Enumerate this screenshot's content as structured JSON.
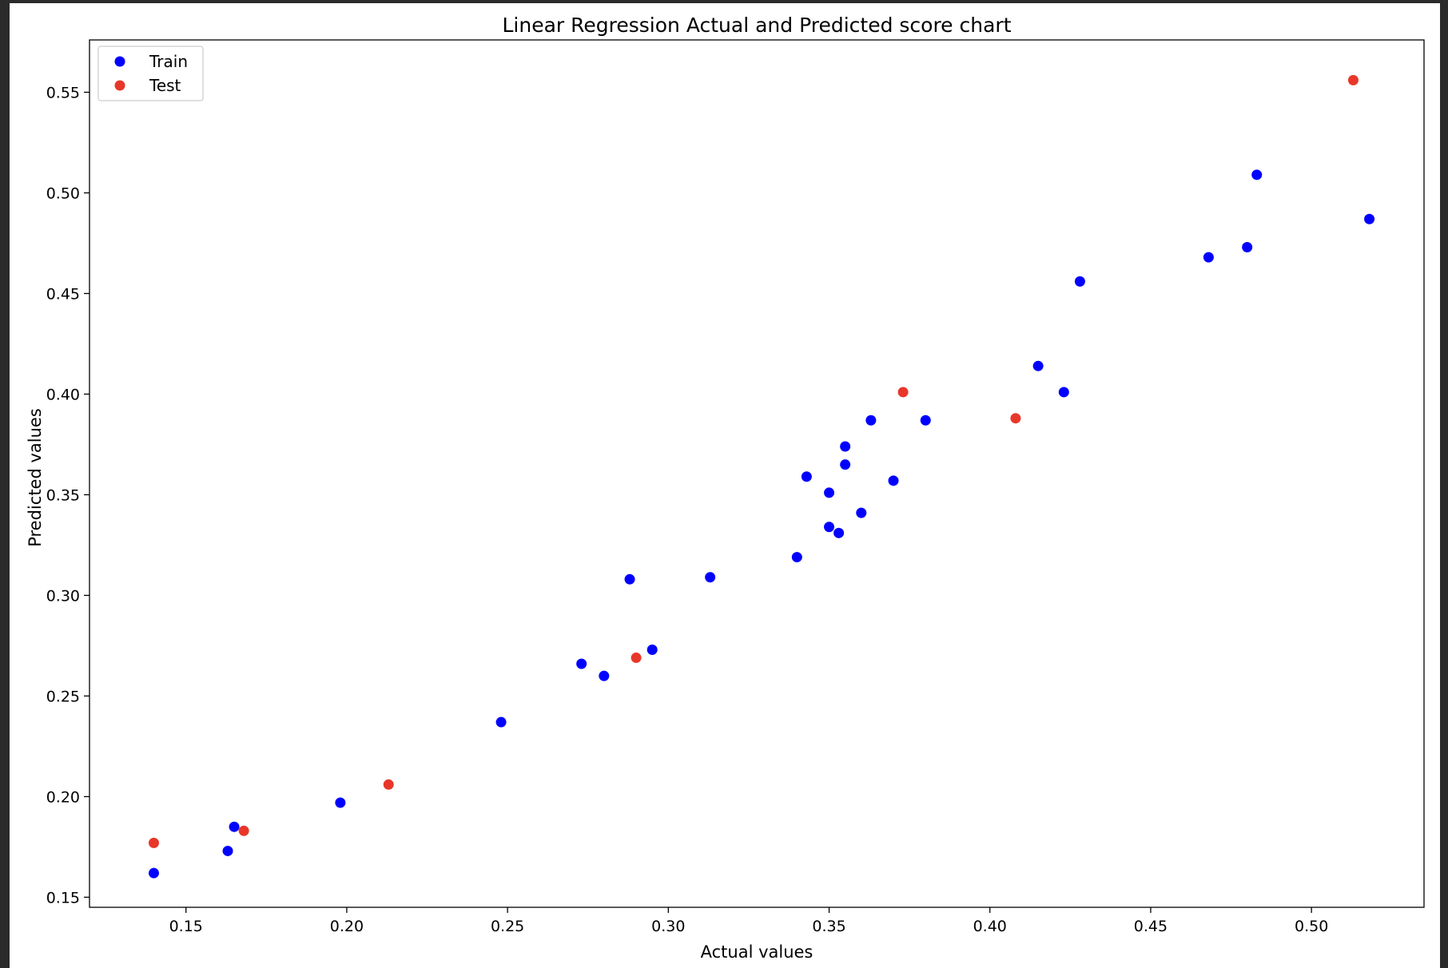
{
  "chart_data": {
    "type": "scatter",
    "title": "Linear Regression Actual and Predicted score chart",
    "xlabel": "Actual values",
    "ylabel": "Predicted values",
    "xlim": [
      0.12,
      0.535
    ],
    "ylim": [
      0.145,
      0.576
    ],
    "xticks": [
      0.15,
      0.2,
      0.25,
      0.3,
      0.35,
      0.4,
      0.45,
      0.5
    ],
    "xtick_labels": [
      "0.15",
      "0.20",
      "0.25",
      "0.30",
      "0.35",
      "0.40",
      "0.45",
      "0.50"
    ],
    "yticks": [
      0.15,
      0.2,
      0.25,
      0.3,
      0.35,
      0.4,
      0.45,
      0.5,
      0.55
    ],
    "ytick_labels": [
      "0.15",
      "0.20",
      "0.25",
      "0.30",
      "0.35",
      "0.40",
      "0.45",
      "0.50",
      "0.55"
    ],
    "grid": false,
    "legend_position": "top-left",
    "series": [
      {
        "name": "Train",
        "color": "#0000ff",
        "points": [
          [
            0.14,
            0.162
          ],
          [
            0.163,
            0.173
          ],
          [
            0.165,
            0.185
          ],
          [
            0.198,
            0.197
          ],
          [
            0.248,
            0.237
          ],
          [
            0.273,
            0.266
          ],
          [
            0.28,
            0.26
          ],
          [
            0.288,
            0.308
          ],
          [
            0.295,
            0.273
          ],
          [
            0.313,
            0.309
          ],
          [
            0.34,
            0.319
          ],
          [
            0.343,
            0.359
          ],
          [
            0.35,
            0.351
          ],
          [
            0.35,
            0.334
          ],
          [
            0.353,
            0.331
          ],
          [
            0.355,
            0.374
          ],
          [
            0.355,
            0.365
          ],
          [
            0.36,
            0.341
          ],
          [
            0.363,
            0.387
          ],
          [
            0.37,
            0.357
          ],
          [
            0.38,
            0.387
          ],
          [
            0.415,
            0.414
          ],
          [
            0.423,
            0.401
          ],
          [
            0.428,
            0.456
          ],
          [
            0.468,
            0.468
          ],
          [
            0.48,
            0.473
          ],
          [
            0.483,
            0.509
          ],
          [
            0.518,
            0.487
          ]
        ]
      },
      {
        "name": "Test",
        "color": "#e8372a",
        "points": [
          [
            0.14,
            0.177
          ],
          [
            0.168,
            0.183
          ],
          [
            0.213,
            0.206
          ],
          [
            0.29,
            0.269
          ],
          [
            0.373,
            0.401
          ],
          [
            0.408,
            0.388
          ],
          [
            0.513,
            0.556
          ]
        ]
      }
    ]
  }
}
